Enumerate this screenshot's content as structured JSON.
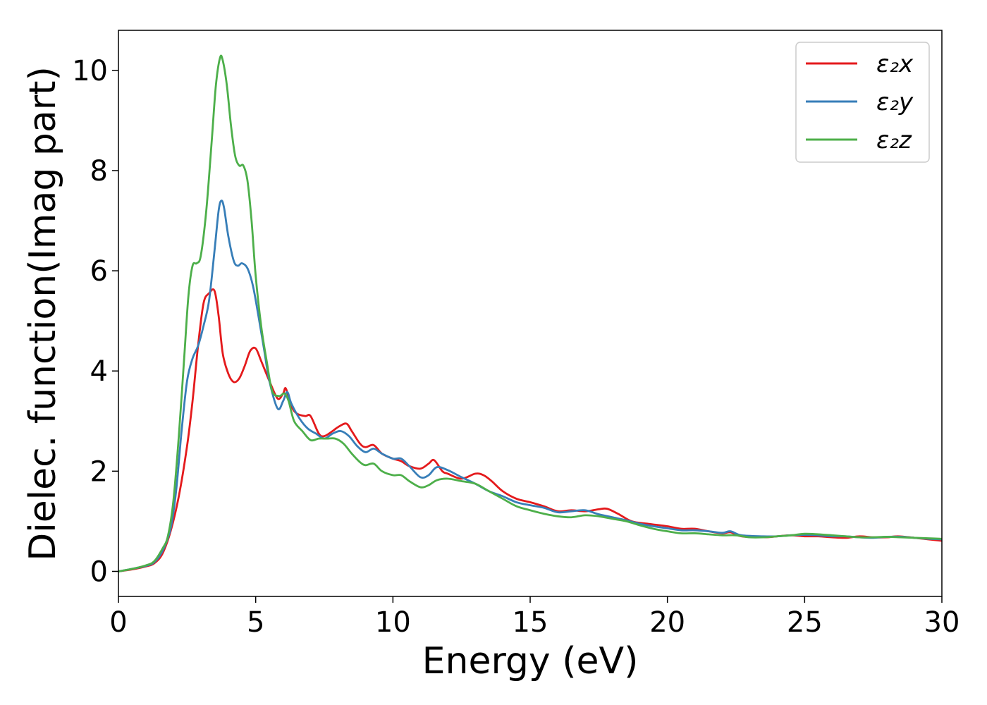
{
  "chart_data": {
    "type": "line",
    "xlabel": "Energy (eV)",
    "ylabel": "Dielec. function(Imag part)",
    "xlim": [
      0,
      30
    ],
    "ylim": [
      -0.5,
      10.8
    ],
    "xticks": [
      0,
      5,
      10,
      15,
      20,
      25,
      30
    ],
    "yticks": [
      0,
      2,
      4,
      6,
      8,
      10
    ],
    "legend_position": "top-right",
    "grid": false,
    "series": [
      {
        "name": "ε₂x",
        "color": "#e41a1c",
        "points": [
          [
            0,
            0
          ],
          [
            0.5,
            0.04
          ],
          [
            1,
            0.1
          ],
          [
            1.3,
            0.16
          ],
          [
            1.6,
            0.35
          ],
          [
            1.9,
            0.8
          ],
          [
            2.2,
            1.5
          ],
          [
            2.5,
            2.5
          ],
          [
            2.7,
            3.4
          ],
          [
            2.9,
            4.5
          ],
          [
            3.1,
            5.35
          ],
          [
            3.3,
            5.55
          ],
          [
            3.5,
            5.6
          ],
          [
            3.65,
            5.1
          ],
          [
            3.8,
            4.35
          ],
          [
            4,
            3.95
          ],
          [
            4.2,
            3.78
          ],
          [
            4.4,
            3.85
          ],
          [
            4.6,
            4.1
          ],
          [
            4.8,
            4.4
          ],
          [
            5,
            4.45
          ],
          [
            5.2,
            4.2
          ],
          [
            5.5,
            3.8
          ],
          [
            5.8,
            3.45
          ],
          [
            6,
            3.55
          ],
          [
            6.1,
            3.65
          ],
          [
            6.3,
            3.3
          ],
          [
            6.5,
            3.15
          ],
          [
            6.8,
            3.1
          ],
          [
            7,
            3.1
          ],
          [
            7.3,
            2.75
          ],
          [
            7.5,
            2.7
          ],
          [
            7.8,
            2.8
          ],
          [
            8,
            2.88
          ],
          [
            8.3,
            2.95
          ],
          [
            8.5,
            2.8
          ],
          [
            8.8,
            2.55
          ],
          [
            9,
            2.48
          ],
          [
            9.3,
            2.52
          ],
          [
            9.6,
            2.35
          ],
          [
            10,
            2.25
          ],
          [
            10.3,
            2.2
          ],
          [
            10.6,
            2.1
          ],
          [
            11,
            2.05
          ],
          [
            11.3,
            2.15
          ],
          [
            11.5,
            2.22
          ],
          [
            11.8,
            2.0
          ],
          [
            12,
            1.95
          ],
          [
            12.5,
            1.85
          ],
          [
            13,
            1.95
          ],
          [
            13.3,
            1.92
          ],
          [
            13.6,
            1.8
          ],
          [
            14,
            1.6
          ],
          [
            14.5,
            1.45
          ],
          [
            15,
            1.38
          ],
          [
            15.5,
            1.3
          ],
          [
            16,
            1.2
          ],
          [
            16.5,
            1.22
          ],
          [
            17,
            1.2
          ],
          [
            17.5,
            1.24
          ],
          [
            17.8,
            1.25
          ],
          [
            18.2,
            1.15
          ],
          [
            18.7,
            1.0
          ],
          [
            19.3,
            0.95
          ],
          [
            20,
            0.9
          ],
          [
            20.5,
            0.85
          ],
          [
            21,
            0.85
          ],
          [
            21.5,
            0.8
          ],
          [
            22,
            0.76
          ],
          [
            22.3,
            0.78
          ],
          [
            22.7,
            0.7
          ],
          [
            23.5,
            0.68
          ],
          [
            24,
            0.7
          ],
          [
            24.5,
            0.72
          ],
          [
            25,
            0.7
          ],
          [
            25.5,
            0.7
          ],
          [
            26,
            0.68
          ],
          [
            26.5,
            0.67
          ],
          [
            27,
            0.7
          ],
          [
            27.5,
            0.68
          ],
          [
            28,
            0.68
          ],
          [
            28.4,
            0.7
          ],
          [
            29,
            0.67
          ],
          [
            29.5,
            0.64
          ],
          [
            30,
            0.61
          ]
        ]
      },
      {
        "name": "ε₂y",
        "color": "#377eb8",
        "points": [
          [
            0,
            0
          ],
          [
            0.5,
            0.05
          ],
          [
            1,
            0.11
          ],
          [
            1.3,
            0.18
          ],
          [
            1.6,
            0.4
          ],
          [
            1.9,
            0.85
          ],
          [
            2.1,
            1.6
          ],
          [
            2.3,
            2.8
          ],
          [
            2.5,
            3.8
          ],
          [
            2.7,
            4.25
          ],
          [
            2.9,
            4.5
          ],
          [
            3.1,
            4.9
          ],
          [
            3.3,
            5.4
          ],
          [
            3.5,
            6.4
          ],
          [
            3.65,
            7.2
          ],
          [
            3.75,
            7.4
          ],
          [
            3.85,
            7.25
          ],
          [
            4,
            6.7
          ],
          [
            4.2,
            6.2
          ],
          [
            4.35,
            6.1
          ],
          [
            4.5,
            6.15
          ],
          [
            4.7,
            6.05
          ],
          [
            4.9,
            5.7
          ],
          [
            5.1,
            5.1
          ],
          [
            5.3,
            4.45
          ],
          [
            5.5,
            3.8
          ],
          [
            5.8,
            3.25
          ],
          [
            6,
            3.4
          ],
          [
            6.15,
            3.58
          ],
          [
            6.3,
            3.35
          ],
          [
            6.6,
            3.05
          ],
          [
            6.9,
            2.85
          ],
          [
            7.2,
            2.75
          ],
          [
            7.5,
            2.65
          ],
          [
            7.8,
            2.75
          ],
          [
            8.1,
            2.8
          ],
          [
            8.4,
            2.7
          ],
          [
            8.7,
            2.5
          ],
          [
            9,
            2.38
          ],
          [
            9.3,
            2.45
          ],
          [
            9.6,
            2.35
          ],
          [
            10,
            2.25
          ],
          [
            10.3,
            2.25
          ],
          [
            10.6,
            2.1
          ],
          [
            11,
            1.88
          ],
          [
            11.3,
            1.92
          ],
          [
            11.6,
            2.08
          ],
          [
            12,
            2.02
          ],
          [
            12.5,
            1.88
          ],
          [
            13,
            1.75
          ],
          [
            13.5,
            1.6
          ],
          [
            14,
            1.5
          ],
          [
            14.5,
            1.38
          ],
          [
            15,
            1.32
          ],
          [
            15.5,
            1.27
          ],
          [
            16,
            1.18
          ],
          [
            16.5,
            1.2
          ],
          [
            17,
            1.22
          ],
          [
            17.5,
            1.14
          ],
          [
            18,
            1.08
          ],
          [
            18.5,
            1.02
          ],
          [
            19,
            0.95
          ],
          [
            19.5,
            0.9
          ],
          [
            20,
            0.86
          ],
          [
            20.5,
            0.82
          ],
          [
            21,
            0.82
          ],
          [
            21.5,
            0.8
          ],
          [
            22,
            0.77
          ],
          [
            22.3,
            0.8
          ],
          [
            22.7,
            0.72
          ],
          [
            23.5,
            0.7
          ],
          [
            24,
            0.7
          ],
          [
            24.5,
            0.72
          ],
          [
            25,
            0.73
          ],
          [
            25.5,
            0.72
          ],
          [
            26,
            0.7
          ],
          [
            26.5,
            0.7
          ],
          [
            27,
            0.68
          ],
          [
            27.5,
            0.67
          ],
          [
            28,
            0.69
          ],
          [
            28.5,
            0.69
          ],
          [
            29,
            0.67
          ],
          [
            29.5,
            0.65
          ],
          [
            30,
            0.64
          ]
        ]
      },
      {
        "name": "ε₂z",
        "color": "#4daf4a",
        "points": [
          [
            0,
            0
          ],
          [
            0.5,
            0.05
          ],
          [
            1,
            0.12
          ],
          [
            1.3,
            0.2
          ],
          [
            1.6,
            0.45
          ],
          [
            1.8,
            0.7
          ],
          [
            2.0,
            1.4
          ],
          [
            2.2,
            2.7
          ],
          [
            2.4,
            4.3
          ],
          [
            2.55,
            5.5
          ],
          [
            2.7,
            6.1
          ],
          [
            2.85,
            6.15
          ],
          [
            3.0,
            6.3
          ],
          [
            3.2,
            7.2
          ],
          [
            3.4,
            8.6
          ],
          [
            3.55,
            9.7
          ],
          [
            3.7,
            10.25
          ],
          [
            3.8,
            10.2
          ],
          [
            3.95,
            9.7
          ],
          [
            4.1,
            8.9
          ],
          [
            4.25,
            8.3
          ],
          [
            4.4,
            8.1
          ],
          [
            4.55,
            8.1
          ],
          [
            4.7,
            7.8
          ],
          [
            4.85,
            7.0
          ],
          [
            5.0,
            5.9
          ],
          [
            5.2,
            4.9
          ],
          [
            5.4,
            4.2
          ],
          [
            5.6,
            3.6
          ],
          [
            5.85,
            3.5
          ],
          [
            6.05,
            3.55
          ],
          [
            6.2,
            3.4
          ],
          [
            6.4,
            3.0
          ],
          [
            6.7,
            2.8
          ],
          [
            7.0,
            2.62
          ],
          [
            7.3,
            2.65
          ],
          [
            7.6,
            2.65
          ],
          [
            7.9,
            2.65
          ],
          [
            8.2,
            2.55
          ],
          [
            8.5,
            2.35
          ],
          [
            8.8,
            2.18
          ],
          [
            9.0,
            2.12
          ],
          [
            9.3,
            2.15
          ],
          [
            9.6,
            2.0
          ],
          [
            10,
            1.92
          ],
          [
            10.3,
            1.92
          ],
          [
            10.6,
            1.8
          ],
          [
            11,
            1.68
          ],
          [
            11.3,
            1.72
          ],
          [
            11.6,
            1.82
          ],
          [
            12,
            1.85
          ],
          [
            12.5,
            1.8
          ],
          [
            13,
            1.75
          ],
          [
            13.5,
            1.6
          ],
          [
            14,
            1.45
          ],
          [
            14.5,
            1.3
          ],
          [
            15,
            1.22
          ],
          [
            15.5,
            1.15
          ],
          [
            16,
            1.1
          ],
          [
            16.5,
            1.08
          ],
          [
            17,
            1.12
          ],
          [
            17.5,
            1.1
          ],
          [
            18,
            1.05
          ],
          [
            18.5,
            1.0
          ],
          [
            19,
            0.92
          ],
          [
            19.5,
            0.85
          ],
          [
            20,
            0.8
          ],
          [
            20.5,
            0.76
          ],
          [
            21,
            0.76
          ],
          [
            21.5,
            0.74
          ],
          [
            22,
            0.72
          ],
          [
            22.5,
            0.72
          ],
          [
            23,
            0.68
          ],
          [
            23.5,
            0.68
          ],
          [
            24,
            0.7
          ],
          [
            24.5,
            0.72
          ],
          [
            25,
            0.75
          ],
          [
            25.5,
            0.74
          ],
          [
            26,
            0.72
          ],
          [
            26.5,
            0.7
          ],
          [
            27,
            0.68
          ],
          [
            27.5,
            0.68
          ],
          [
            28,
            0.69
          ],
          [
            28.5,
            0.68
          ],
          [
            29,
            0.67
          ],
          [
            29.5,
            0.66
          ],
          [
            30,
            0.65
          ]
        ]
      }
    ]
  }
}
